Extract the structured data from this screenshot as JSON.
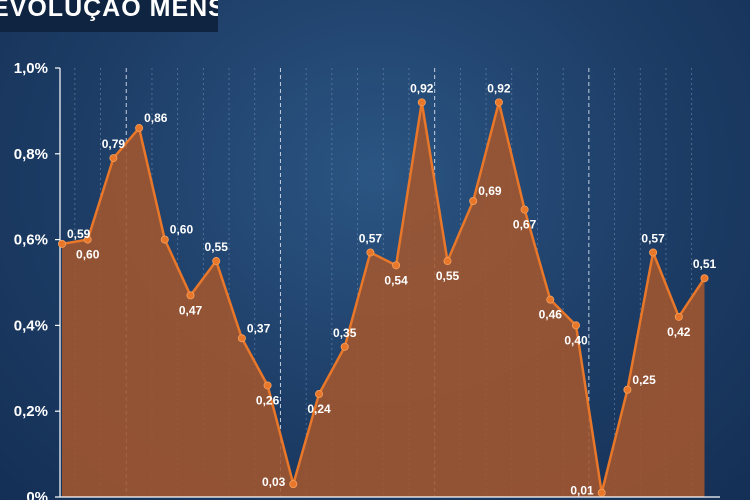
{
  "header": {
    "title": "EVOLUÇÃO MENSAL"
  },
  "chart_data": {
    "type": "area",
    "title": "EVOLUÇÃO MENSAL",
    "xlabel": "",
    "ylabel": "",
    "ylim": [
      0,
      1.0
    ],
    "yticks": [
      0,
      0.2,
      0.4,
      0.6,
      0.8,
      1.0
    ],
    "ytick_labels": [
      "0%",
      "0,2%",
      "0,4%",
      "0,6%",
      "0,8%",
      "1,0%"
    ],
    "values": [
      0.59,
      0.6,
      0.79,
      0.86,
      0.6,
      0.47,
      0.55,
      0.37,
      0.26,
      0.03,
      0.24,
      0.35,
      0.57,
      0.54,
      0.92,
      0.55,
      0.69,
      0.92,
      0.67,
      0.46,
      0.4,
      0.01,
      0.25,
      0.57,
      0.42,
      0.51
    ],
    "value_labels": [
      "0,59",
      "0,60",
      "0,79",
      "0,86",
      "0,60",
      "0,47",
      "0,55",
      "0,37",
      "0,26",
      "0,03",
      "0,24",
      "0,35",
      "0,57",
      "0,54",
      "0,92",
      "0,55",
      "0,69",
      "0,92",
      "0,67",
      "0,46",
      "0,40",
      "0,01",
      "0,25",
      "0,57",
      "0,42",
      "0,51"
    ],
    "label_positions": [
      "right",
      "below",
      "above",
      "right",
      "right",
      "below",
      "above",
      "right",
      "below",
      "left",
      "below",
      "above",
      "above",
      "below",
      "above",
      "below",
      "right",
      "above",
      "below",
      "below",
      "below",
      "left",
      "right",
      "above",
      "below",
      "above"
    ],
    "year_separators_after_index": [
      2,
      8,
      14,
      20
    ],
    "colors": {
      "line": "#e8772a",
      "fill": "#a3562d",
      "grid": "#8aa4c4"
    }
  }
}
